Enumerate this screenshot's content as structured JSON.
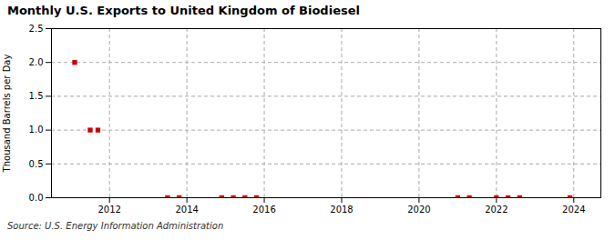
{
  "chart_data": {
    "type": "scatter",
    "title": "Monthly U.S. Exports to United Kingdom of Biodiesel",
    "ylabel": "Thousand Barrels per Day",
    "annotations": [
      "Source: U.S. Energy Information Administration"
    ],
    "x": [
      2011.1,
      2011.5,
      2011.7,
      2013.5,
      2013.8,
      2014.9,
      2015.2,
      2015.5,
      2015.8,
      2021.0,
      2021.3,
      2022.0,
      2022.3,
      2022.6,
      2023.9
    ],
    "values": [
      2.0,
      1.0,
      1.0,
      0.0,
      0.0,
      0.0,
      0.0,
      0.0,
      0.0,
      0.0,
      0.0,
      0.0,
      0.0,
      0.0,
      0.0
    ],
    "color": "#cc0000",
    "marker": "square",
    "xlim": [
      2010.5,
      2024.7
    ],
    "xticks": [
      2012,
      2014,
      2016,
      2018,
      2020,
      2022,
      2024
    ],
    "ylim": [
      0.0,
      2.5
    ],
    "yticks": [
      {
        "value": 0,
        "label": "0.0"
      },
      0.5,
      {
        "value": 1,
        "label": "1.0"
      },
      1.5,
      {
        "value": 2,
        "label": "2.0"
      },
      2.5
    ],
    "grid": true
  }
}
